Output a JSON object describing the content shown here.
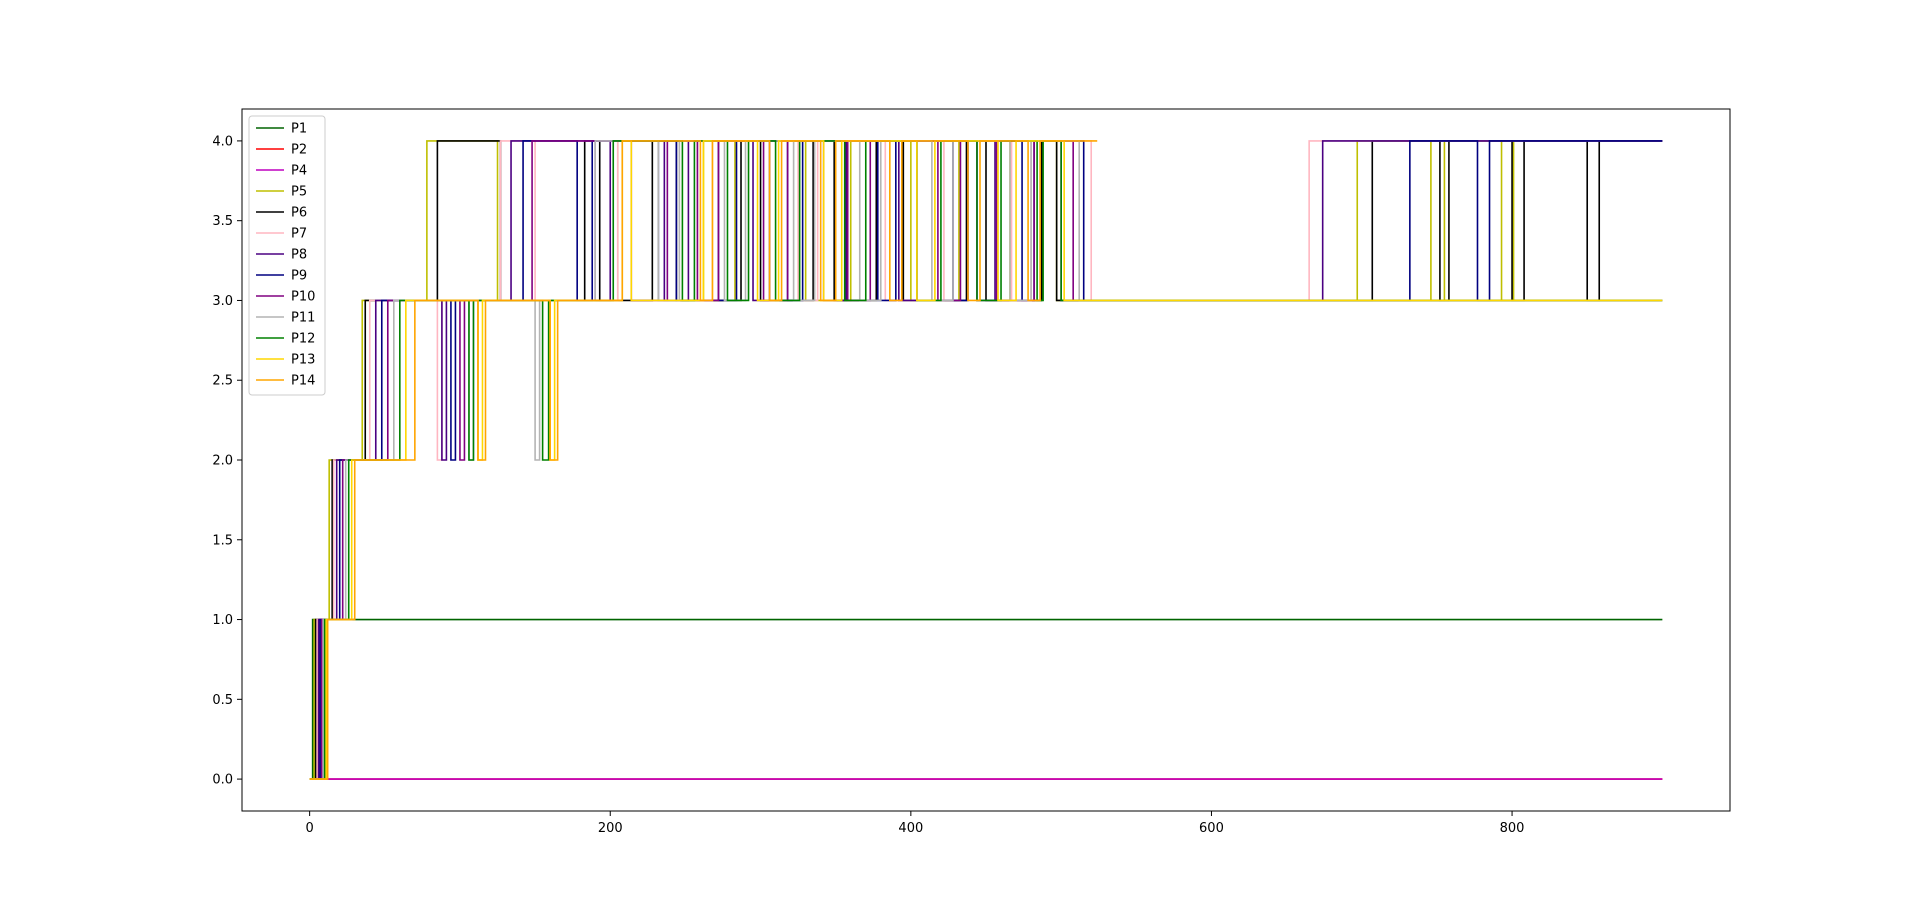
{
  "chart_data": {
    "type": "line",
    "title": "",
    "xlabel": "",
    "ylabel": "",
    "xlim": [
      -45,
      945
    ],
    "ylim": [
      -0.2,
      4.2
    ],
    "x_ticks": [
      0,
      200,
      400,
      600,
      800
    ],
    "y_ticks": [
      0.0,
      0.5,
      1.0,
      1.5,
      2.0,
      2.5,
      3.0,
      3.5,
      4.0
    ],
    "x_tick_labels": [
      "0",
      "200",
      "400",
      "600",
      "800"
    ],
    "y_tick_labels": [
      "0.0",
      "0.5",
      "1.0",
      "1.5",
      "2.0",
      "2.5",
      "3.0",
      "3.5",
      "4.0"
    ],
    "grid": false,
    "legend_position": "top-left",
    "series": [
      {
        "name": "P1",
        "color": "#006400",
        "drawstyle": "steps",
        "points": [
          [
            0,
            0
          ],
          [
            2,
            1
          ],
          [
            900,
            1
          ]
        ]
      },
      {
        "name": "P2",
        "color": "#ff0000",
        "drawstyle": "steps",
        "points": [
          [
            0,
            0
          ],
          [
            900,
            0
          ]
        ]
      },
      {
        "name": "P4",
        "color": "#bf00bf",
        "drawstyle": "steps",
        "points": [
          [
            0,
            0
          ],
          [
            900,
            0
          ]
        ]
      },
      {
        "name": "P5",
        "color": "#bfbf00",
        "drawstyle": "steps",
        "points": [
          [
            0,
            0
          ],
          [
            3,
            1
          ],
          [
            13,
            2
          ],
          [
            35,
            3
          ],
          [
            78,
            4
          ],
          [
            125,
            3
          ],
          [
            205,
            4
          ],
          [
            262,
            3
          ],
          [
            283,
            4
          ],
          [
            330,
            3
          ],
          [
            360,
            4
          ],
          [
            400,
            3
          ],
          [
            432,
            4
          ],
          [
            466,
            3
          ],
          [
            487,
            4
          ],
          [
            497,
            3
          ],
          [
            662,
            3
          ],
          [
            697,
            4
          ],
          [
            746,
            3
          ],
          [
            755,
            4
          ],
          [
            793,
            3
          ],
          [
            801,
            4
          ],
          [
            900,
            4
          ]
        ]
      },
      {
        "name": "P6",
        "color": "#000000",
        "drawstyle": "steps",
        "points": [
          [
            0,
            0
          ],
          [
            4,
            1
          ],
          [
            15,
            2
          ],
          [
            37,
            3
          ],
          [
            85,
            4
          ],
          [
            127,
            3
          ],
          [
            183,
            4
          ],
          [
            193,
            3
          ],
          [
            228,
            4
          ],
          [
            244,
            3
          ],
          [
            287,
            4
          ],
          [
            300,
            3
          ],
          [
            335,
            4
          ],
          [
            349,
            3
          ],
          [
            377,
            4
          ],
          [
            395,
            3
          ],
          [
            437,
            4
          ],
          [
            450,
            3
          ],
          [
            487,
            4
          ],
          [
            497,
            3
          ],
          [
            705,
            3
          ],
          [
            707,
            4
          ],
          [
            752,
            3
          ],
          [
            758,
            4
          ],
          [
            800,
            3
          ],
          [
            808,
            4
          ],
          [
            850,
            3
          ],
          [
            858,
            4
          ],
          [
            900,
            4
          ]
        ]
      },
      {
        "name": "P7",
        "color": "#ffb6c1",
        "drawstyle": "steps",
        "points": [
          [
            0,
            0
          ],
          [
            5,
            1
          ],
          [
            16,
            2
          ],
          [
            40,
            3
          ],
          [
            85,
            2
          ],
          [
            88,
            3
          ],
          [
            127,
            4
          ],
          [
            150,
            3
          ],
          [
            205,
            4
          ],
          [
            258,
            3
          ],
          [
            268,
            4
          ],
          [
            325,
            3
          ],
          [
            338,
            4
          ],
          [
            383,
            3
          ],
          [
            422,
            4
          ],
          [
            467,
            3
          ],
          [
            480,
            4
          ],
          [
            520,
            3
          ],
          [
            662,
            3
          ],
          [
            665,
            4
          ],
          [
            900,
            4
          ]
        ]
      },
      {
        "name": "P8",
        "color": "#4b0082",
        "drawstyle": "steps",
        "points": [
          [
            0,
            0
          ],
          [
            6,
            1
          ],
          [
            18,
            2
          ],
          [
            44,
            3
          ],
          [
            88,
            2
          ],
          [
            91,
            3
          ],
          [
            134,
            4
          ],
          [
            190,
            3
          ],
          [
            200,
            4
          ],
          [
            236,
            3
          ],
          [
            252,
            4
          ],
          [
            295,
            3
          ],
          [
            306,
            4
          ],
          [
            342,
            3
          ],
          [
            357,
            4
          ],
          [
            392,
            3
          ],
          [
            404,
            4
          ],
          [
            444,
            3
          ],
          [
            456,
            4
          ],
          [
            500,
            3
          ],
          [
            672,
            3
          ],
          [
            674,
            4
          ],
          [
            900,
            4
          ]
        ]
      },
      {
        "name": "P9",
        "color": "#000080",
        "drawstyle": "steps",
        "points": [
          [
            0,
            0
          ],
          [
            7,
            1
          ],
          [
            20,
            2
          ],
          [
            48,
            3
          ],
          [
            94,
            2
          ],
          [
            97,
            3
          ],
          [
            142,
            4
          ],
          [
            178,
            3
          ],
          [
            188,
            4
          ],
          [
            232,
            3
          ],
          [
            244,
            4
          ],
          [
            272,
            3
          ],
          [
            284,
            4
          ],
          [
            318,
            3
          ],
          [
            328,
            4
          ],
          [
            378,
            3
          ],
          [
            390,
            4
          ],
          [
            428,
            3
          ],
          [
            438,
            4
          ],
          [
            474,
            3
          ],
          [
            482,
            4
          ],
          [
            515,
            3
          ],
          [
            730,
            3
          ],
          [
            732,
            4
          ],
          [
            777,
            3
          ],
          [
            785,
            4
          ],
          [
            900,
            4
          ]
        ]
      },
      {
        "name": "P10",
        "color": "#800080",
        "drawstyle": "steps",
        "points": [
          [
            0,
            0
          ],
          [
            8,
            1
          ],
          [
            22,
            2
          ],
          [
            52,
            3
          ],
          [
            100,
            2
          ],
          [
            103,
            3
          ],
          [
            148,
            4
          ],
          [
            214,
            3
          ],
          [
            238,
            4
          ],
          [
            258,
            3
          ],
          [
            272,
            4
          ],
          [
            302,
            3
          ],
          [
            318,
            4
          ],
          [
            358,
            3
          ],
          [
            373,
            4
          ],
          [
            418,
            3
          ],
          [
            433,
            4
          ],
          [
            457,
            3
          ],
          [
            482,
            4
          ],
          [
            508,
            3
          ],
          [
            900,
            3
          ]
        ]
      },
      {
        "name": "P11",
        "color": "#b4b4b4",
        "drawstyle": "steps",
        "points": [
          [
            0,
            0
          ],
          [
            9,
            1
          ],
          [
            24,
            2
          ],
          [
            56,
            3
          ],
          [
            106,
            2
          ],
          [
            109,
            3
          ],
          [
            150,
            2
          ],
          [
            153,
            3
          ],
          [
            190,
            4
          ],
          [
            232,
            3
          ],
          [
            246,
            4
          ],
          [
            276,
            3
          ],
          [
            290,
            4
          ],
          [
            322,
            3
          ],
          [
            336,
            4
          ],
          [
            366,
            3
          ],
          [
            380,
            4
          ],
          [
            414,
            3
          ],
          [
            428,
            4
          ],
          [
            466,
            3
          ],
          [
            480,
            4
          ],
          [
            512,
            3
          ],
          [
            900,
            3
          ]
        ]
      },
      {
        "name": "P12",
        "color": "#008000",
        "drawstyle": "steps",
        "points": [
          [
            0,
            0
          ],
          [
            10,
            1
          ],
          [
            26,
            2
          ],
          [
            60,
            3
          ],
          [
            106,
            2
          ],
          [
            109,
            3
          ],
          [
            155,
            2
          ],
          [
            159,
            3
          ],
          [
            202,
            4
          ],
          [
            248,
            3
          ],
          [
            256,
            4
          ],
          [
            278,
            3
          ],
          [
            292,
            4
          ],
          [
            310,
            3
          ],
          [
            326,
            4
          ],
          [
            356,
            3
          ],
          [
            370,
            4
          ],
          [
            404,
            3
          ],
          [
            420,
            4
          ],
          [
            444,
            3
          ],
          [
            460,
            4
          ],
          [
            484,
            3
          ],
          [
            488,
            4
          ],
          [
            500,
            3
          ],
          [
            900,
            3
          ]
        ]
      },
      {
        "name": "P13",
        "color": "#ffd700",
        "drawstyle": "steps",
        "points": [
          [
            0,
            0
          ],
          [
            11,
            1
          ],
          [
            28,
            2
          ],
          [
            64,
            3
          ],
          [
            112,
            2
          ],
          [
            115,
            3
          ],
          [
            160,
            2
          ],
          [
            163,
            3
          ],
          [
            208,
            4
          ],
          [
            214,
            3
          ],
          [
            262,
            4
          ],
          [
            298,
            3
          ],
          [
            312,
            4
          ],
          [
            342,
            3
          ],
          [
            354,
            4
          ],
          [
            404,
            3
          ],
          [
            416,
            4
          ],
          [
            458,
            3
          ],
          [
            470,
            4
          ],
          [
            502,
            3
          ],
          [
            900,
            3
          ]
        ]
      },
      {
        "name": "P14",
        "color": "#ffa500",
        "drawstyle": "steps",
        "points": [
          [
            0,
            0
          ],
          [
            12,
            1
          ],
          [
            30,
            2
          ],
          [
            70,
            3
          ],
          [
            112,
            2
          ],
          [
            117,
            3
          ],
          [
            160,
            2
          ],
          [
            165,
            3
          ],
          [
            208,
            4
          ],
          [
            260,
            3
          ],
          [
            268,
            4
          ],
          [
            306,
            3
          ],
          [
            314,
            4
          ],
          [
            340,
            3
          ],
          [
            350,
            4
          ],
          [
            386,
            3
          ],
          [
            394,
            4
          ],
          [
            438,
            3
          ],
          [
            446,
            4
          ],
          [
            478,
            3
          ],
          [
            486,
            4
          ],
          [
            524,
            4
          ]
        ]
      }
    ]
  }
}
